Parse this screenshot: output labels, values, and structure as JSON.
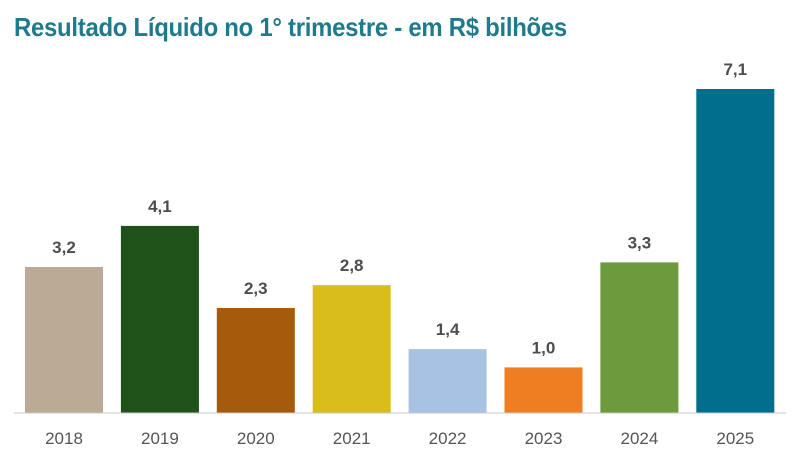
{
  "chart_data": {
    "type": "bar",
    "title": "Resultado Líquido no 1° trimestre - em R$ bilhões",
    "categories": [
      "2018",
      "2019",
      "2020",
      "2021",
      "2022",
      "2023",
      "2024",
      "2025"
    ],
    "values": [
      3.2,
      4.1,
      2.3,
      2.8,
      1.4,
      1.0,
      3.3,
      7.1
    ],
    "value_labels": [
      "3,2",
      "4,1",
      "2,3",
      "2,8",
      "1,4",
      "1,0",
      "3,3",
      "7,1"
    ],
    "colors": [
      "#bbab96",
      "#1e5218",
      "#a65a0b",
      "#d9bd1b",
      "#a7c2e2",
      "#ef7d22",
      "#6c9a3d",
      "#006e8c"
    ],
    "ylim": [
      0,
      7.1
    ],
    "grid": false,
    "legend": "none",
    "xlabel": "",
    "ylabel": ""
  }
}
